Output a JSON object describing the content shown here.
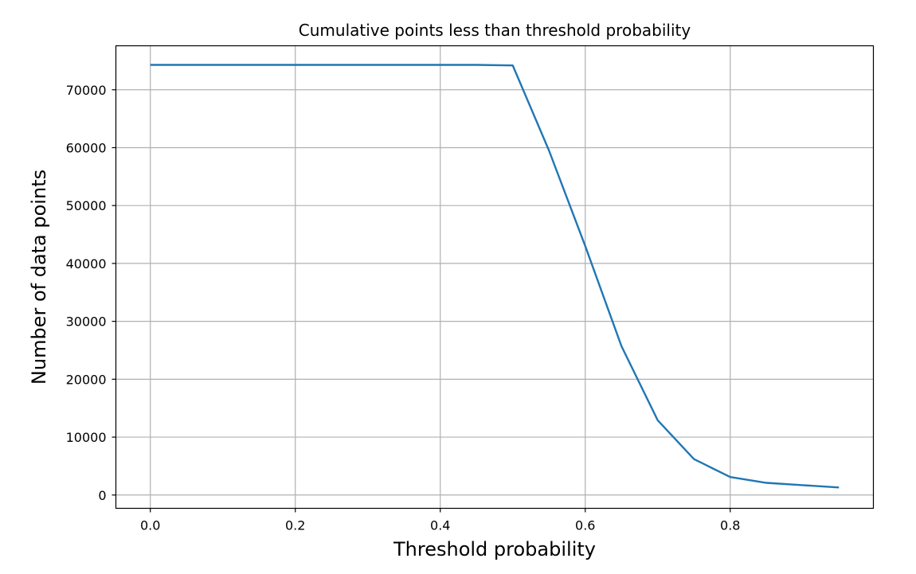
{
  "chart_data": {
    "type": "line",
    "title": "Cumulative points less than threshold probability",
    "xlabel": "Threshold probability",
    "ylabel": "Number of data points",
    "xlim": [
      -0.0475,
      0.9975
    ],
    "ylim": [
      -2300,
      77600
    ],
    "x_ticks": [
      0.0,
      0.2,
      0.4,
      0.6,
      0.8
    ],
    "x_tick_labels": [
      "0.0",
      "0.2",
      "0.4",
      "0.6",
      "0.8"
    ],
    "y_ticks": [
      0,
      10000,
      20000,
      30000,
      40000,
      50000,
      60000,
      70000
    ],
    "y_tick_labels": [
      "0",
      "10000",
      "20000",
      "30000",
      "40000",
      "50000",
      "60000",
      "70000"
    ],
    "grid": true,
    "legend": "none",
    "series": [
      {
        "color": "#1f77b4",
        "x": [
          0.0,
          0.05,
          0.1,
          0.15,
          0.2,
          0.25,
          0.3,
          0.35,
          0.4,
          0.45,
          0.5,
          0.55,
          0.6,
          0.65,
          0.7,
          0.75,
          0.8,
          0.85,
          0.9,
          0.95
        ],
        "y": [
          74300,
          74300,
          74300,
          74300,
          74300,
          74300,
          74300,
          74300,
          74300,
          74300,
          74200,
          59500,
          43000,
          25700,
          12900,
          6200,
          3100,
          2100,
          1700,
          1300
        ]
      }
    ],
    "colors": {
      "grid": "#b0b0b0",
      "axes": "#000000",
      "line": "#1f77b4"
    }
  }
}
